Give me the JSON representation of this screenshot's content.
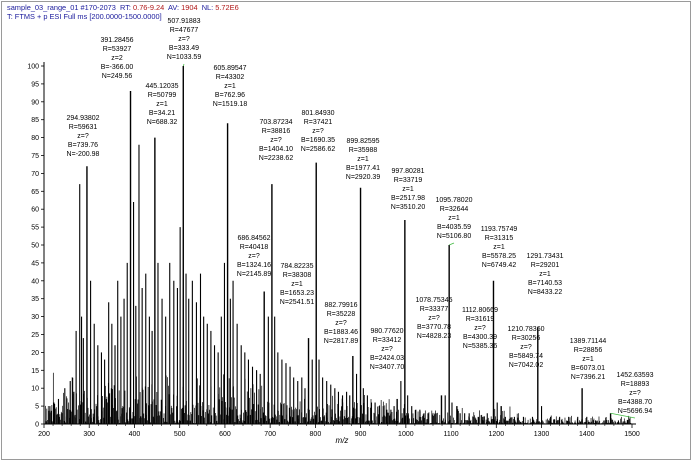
{
  "header": {
    "line1": {
      "file": "sample_03_range_01 #170-2073",
      "rt_label": "RT:",
      "rt_value": "0.76-9.24",
      "av_label": "AV:",
      "av_value": "1904",
      "nl_label": "NL:",
      "nl_value": "5.72E6"
    },
    "line2": "T: FTMS + p ESI Full ms [200.0000-1500.0000]"
  },
  "chart_data": {
    "type": "bar",
    "xlabel": "m/z",
    "ylabel": "",
    "xlim": [
      200,
      1500
    ],
    "ylim": [
      0,
      100
    ],
    "xticks": [
      200,
      300,
      400,
      500,
      600,
      700,
      800,
      900,
      1000,
      1100,
      1200,
      1300,
      1400,
      1500
    ],
    "yticks": [
      0,
      5,
      10,
      15,
      20,
      25,
      30,
      35,
      40,
      45,
      50,
      55,
      60,
      65,
      70,
      75,
      80,
      85,
      90,
      95,
      100
    ],
    "series": [
      {
        "labeled_peaks": [
          {
            "mz": 294.93802,
            "intensity": 72,
            "lines": [
              "294.93802",
              "R=59631",
              "z=?",
              "B=739.76",
              "N=-200.98"
            ]
          },
          {
            "mz": 391.28456,
            "intensity": 93,
            "lines": [
              "391.28456",
              "R=53927",
              "z=2",
              "B=-366.00",
              "N=249.56"
            ]
          },
          {
            "mz": 445.12035,
            "intensity": 80,
            "lines": [
              "445.12035",
              "R=50799",
              "z=1",
              "B=34.21",
              "N=688.32"
            ]
          },
          {
            "mz": 507.91883,
            "intensity": 100,
            "lines": [
              "507.91883",
              "R=47677",
              "z=?",
              "B=333.49",
              "N=1033.59"
            ]
          },
          {
            "mz": 605.89547,
            "intensity": 84,
            "lines": [
              "605.89547",
              "R=43302",
              "z=1",
              "B=762.96",
              "N=1519.18"
            ]
          },
          {
            "mz": 686.84562,
            "intensity": 37,
            "lines": [
              "686.84562",
              "R=40418",
              "z=?",
              "B=1324.16",
              "N=2145.89"
            ]
          },
          {
            "mz": 703.87234,
            "intensity": 67,
            "lines": [
              "703.87234",
              "R=38816",
              "z=?",
              "B=1404.10",
              "N=2238.62"
            ]
          },
          {
            "mz": 784.82235,
            "intensity": 24,
            "lines": [
              "784.82235",
              "R=38308",
              "z=1",
              "B=1653.23",
              "N=2541.51"
            ]
          },
          {
            "mz": 801.8493,
            "intensity": 73,
            "lines": [
              "801.84930",
              "R=37421",
              "z=?",
              "B=1690.35",
              "N=2586.62"
            ]
          },
          {
            "mz": 882.79916,
            "intensity": 19,
            "lines": [
              "882.79916",
              "R=35228",
              "z=?",
              "B=1883.46",
              "N=2817.89"
            ]
          },
          {
            "mz": 899.82595,
            "intensity": 66,
            "lines": [
              "899.82595",
              "R=35988",
              "z=1",
              "B=1977.41",
              "N=2920.39"
            ]
          },
          {
            "mz": 980.7762,
            "intensity": 7,
            "lines": [
              "980.77620",
              "R=33412",
              "z=?",
              "B=2424.03",
              "N=3407.70"
            ]
          },
          {
            "mz": 997.80281,
            "intensity": 57,
            "lines": [
              "997.80281",
              "R=33719",
              "z=1",
              "B=2517.98",
              "N=3510.20"
            ]
          },
          {
            "mz": 1078.75345,
            "intensity": 8,
            "lines": [
              "1078.75345",
              "R=33377",
              "z=?",
              "B=3770.78",
              "N=4828.23"
            ]
          },
          {
            "mz": 1095.7802,
            "intensity": 50,
            "lines": [
              "1095.78020",
              "R=32644",
              "z=1",
              "B=4035.59",
              "N=5106.80"
            ]
          },
          {
            "mz": 1112.80669,
            "intensity": 5,
            "lines": [
              "1112.80669",
              "R=31619",
              "z=?",
              "B=4300.39",
              "N=5385.36"
            ]
          },
          {
            "mz": 1193.75749,
            "intensity": 40,
            "lines": [
              "1193.75749",
              "R=31315",
              "z=1",
              "B=5578.25",
              "N=6749.42"
            ]
          },
          {
            "mz": 1210.7836,
            "intensity": 5,
            "lines": [
              "1210.78360",
              "R=30256",
              "z=?",
              "B=5849.74",
              "N=7042.02"
            ]
          },
          {
            "mz": 1291.73431,
            "intensity": 27,
            "lines": [
              "1291.73431",
              "R=29201",
              "z=1",
              "B=7140.53",
              "N=8433.22"
            ]
          },
          {
            "mz": 1389.71144,
            "intensity": 10,
            "lines": [
              "1389.71144",
              "R=28856",
              "z=1",
              "B=6073.01",
              "N=7396.21"
            ]
          },
          {
            "mz": 1452.63593,
            "intensity": 3,
            "lines": [
              "1452.63593",
              "R=18893",
              "z=?",
              "B=4388.70",
              "N=5696.94"
            ]
          }
        ],
        "other_peaks": [
          [
            213,
            5
          ],
          [
            222,
            6
          ],
          [
            232,
            7
          ],
          [
            246,
            10
          ],
          [
            258,
            12
          ],
          [
            266,
            9
          ],
          [
            271,
            26
          ],
          [
            279,
            67
          ],
          [
            283,
            30
          ],
          [
            287,
            24
          ],
          [
            303,
            40
          ],
          [
            311,
            28
          ],
          [
            319,
            22
          ],
          [
            327,
            20
          ],
          [
            334,
            18
          ],
          [
            343,
            34
          ],
          [
            350,
            28
          ],
          [
            357,
            22
          ],
          [
            363,
            40
          ],
          [
            370,
            30
          ],
          [
            377,
            35
          ],
          [
            384,
            45
          ],
          [
            398,
            62
          ],
          [
            403,
            33
          ],
          [
            410,
            78
          ],
          [
            417,
            38
          ],
          [
            425,
            42
          ],
          [
            433,
            30
          ],
          [
            439,
            26
          ],
          [
            452,
            45
          ],
          [
            461,
            35
          ],
          [
            469,
            30
          ],
          [
            478,
            45
          ],
          [
            487,
            40
          ],
          [
            495,
            38
          ],
          [
            501,
            55
          ],
          [
            514,
            42
          ],
          [
            520,
            35
          ],
          [
            528,
            40
          ],
          [
            537,
            34
          ],
          [
            546,
            42
          ],
          [
            553,
            30
          ],
          [
            561,
            28
          ],
          [
            569,
            26
          ],
          [
            577,
            22
          ],
          [
            585,
            20
          ],
          [
            592,
            30
          ],
          [
            599,
            45
          ],
          [
            612,
            35
          ],
          [
            618,
            40
          ],
          [
            627,
            28
          ],
          [
            636,
            22
          ],
          [
            644,
            20
          ],
          [
            652,
            18
          ],
          [
            661,
            16
          ],
          [
            670,
            15
          ],
          [
            678,
            14
          ],
          [
            696,
            30
          ],
          [
            710,
            30
          ],
          [
            717,
            20
          ],
          [
            726,
            18
          ],
          [
            735,
            17
          ],
          [
            744,
            16
          ],
          [
            752,
            13
          ],
          [
            761,
            12
          ],
          [
            770,
            13
          ],
          [
            777,
            10
          ],
          [
            793,
            18
          ],
          [
            808,
            18
          ],
          [
            816,
            13
          ],
          [
            825,
            12
          ],
          [
            834,
            11
          ],
          [
            843,
            10
          ],
          [
            851,
            9
          ],
          [
            860,
            8
          ],
          [
            869,
            9
          ],
          [
            876,
            8
          ],
          [
            891,
            14
          ],
          [
            906,
            10
          ],
          [
            915,
            8
          ],
          [
            924,
            6
          ],
          [
            932,
            6
          ],
          [
            941,
            5
          ],
          [
            950,
            5
          ],
          [
            958,
            4
          ],
          [
            967,
            4
          ],
          [
            974,
            5
          ],
          [
            989,
            12
          ],
          [
            1004,
            8
          ],
          [
            1013,
            5
          ],
          [
            1022,
            4
          ],
          [
            1031,
            4
          ],
          [
            1040,
            3
          ],
          [
            1049,
            3
          ],
          [
            1058,
            3
          ],
          [
            1067,
            3
          ],
          [
            1087,
            8
          ],
          [
            1102,
            6
          ],
          [
            1120,
            3
          ],
          [
            1130,
            3
          ],
          [
            1140,
            3
          ],
          [
            1150,
            2
          ],
          [
            1160,
            2
          ],
          [
            1170,
            2
          ],
          [
            1180,
            3
          ],
          [
            1202,
            6
          ],
          [
            1220,
            2
          ],
          [
            1240,
            2
          ],
          [
            1260,
            2
          ],
          [
            1280,
            2
          ],
          [
            1300,
            5
          ],
          [
            1320,
            2
          ],
          [
            1340,
            2
          ],
          [
            1360,
            2
          ],
          [
            1380,
            2
          ],
          [
            1400,
            2
          ],
          [
            1420,
            1
          ],
          [
            1440,
            1
          ],
          [
            1470,
            1
          ],
          [
            1490,
            1
          ]
        ]
      }
    ]
  },
  "colors": {
    "header": "#1a1a9c",
    "header_value": "#b01818",
    "peaks": "#000000",
    "leader": "#44bb44",
    "axis": "#000000"
  }
}
